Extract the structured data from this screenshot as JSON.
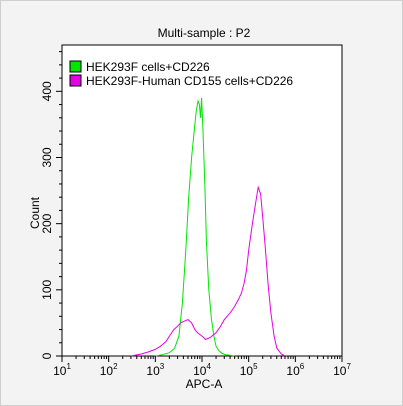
{
  "chart_data": {
    "type": "area",
    "title": "Multi-sample : P2",
    "xlabel": "APC-A",
    "ylabel": "Count",
    "xscale": "log",
    "xlim": [
      10,
      10000000
    ],
    "ylim": [
      0,
      470
    ],
    "x_ticks": [
      {
        "value": 10,
        "base": "10",
        "exp": "1"
      },
      {
        "value": 100,
        "base": "10",
        "exp": "2"
      },
      {
        "value": 1000,
        "base": "10",
        "exp": "3"
      },
      {
        "value": 10000,
        "base": "10",
        "exp": "4"
      },
      {
        "value": 100000,
        "base": "10",
        "exp": "5"
      },
      {
        "value": 1000000,
        "base": "10",
        "exp": "6"
      },
      {
        "value": 10000000,
        "base": "10",
        "exp": "7"
      }
    ],
    "y_ticks": [
      0,
      100,
      200,
      300,
      400
    ],
    "legend_position": "top-left",
    "grid": false,
    "series": [
      {
        "name": "HEK293F cells+CD226",
        "color": "#00e600",
        "x": [
          1000,
          1400,
          2000,
          2600,
          3200,
          3800,
          4500,
          5200,
          6000,
          6800,
          7500,
          8200,
          8800,
          9300,
          9800,
          10500,
          11500,
          12500,
          14000,
          16000,
          18000,
          20000,
          23000,
          27000,
          32000,
          40000,
          50000
        ],
        "y": [
          0,
          2,
          5,
          12,
          30,
          80,
          160,
          240,
          300,
          340,
          370,
          385,
          380,
          360,
          390,
          340,
          260,
          170,
          100,
          55,
          30,
          15,
          8,
          4,
          2,
          1,
          0
        ]
      },
      {
        "name": "HEK293F-Human CD155 cells+CD226",
        "color": "#e600e6",
        "x": [
          300,
          500,
          700,
          1000,
          1300,
          1700,
          2000,
          2500,
          3000,
          3500,
          4000,
          5000,
          6000,
          7000,
          8000,
          10000,
          12000,
          15000,
          20000,
          25000,
          30000,
          40000,
          50000,
          60000,
          70000,
          80000,
          90000,
          100000,
          120000,
          140000,
          160000,
          180000,
          200000,
          230000,
          260000,
          300000,
          350000,
          400000,
          500000,
          600000
        ],
        "y": [
          0,
          3,
          6,
          10,
          15,
          22,
          30,
          40,
          45,
          50,
          52,
          55,
          50,
          40,
          35,
          30,
          25,
          28,
          35,
          45,
          55,
          65,
          75,
          85,
          95,
          110,
          130,
          160,
          200,
          230,
          255,
          245,
          210,
          160,
          110,
          65,
          30,
          12,
          3,
          0
        ]
      }
    ]
  }
}
